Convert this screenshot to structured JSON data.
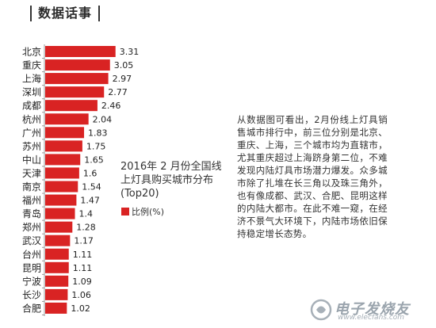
{
  "header": {
    "title": "数据话事"
  },
  "article": {
    "text": "从数据图可看出，2月份线上灯具销售城市排行中，前三位分别是北京、重庆、上海，三个城市均为直辖市，尤其重庆超过上海跻身第二位，不难发现内陆灯具市场潜力爆发。众多城市除了扎堆在长三角以及珠三角外，也有像成都、武汉、合肥、昆明这样的内陆大都市。在此不难一窥，在经济不景气大环境下，内陆市场依旧保持稳定增长态势。"
  },
  "watermark": {
    "text": "电子发烧友",
    "url": "www.elecfans.com"
  },
  "chart_data": {
    "type": "bar",
    "orientation": "horizontal",
    "title": "2016年 2 月份全国线上灯具购买城市分布(Top20)",
    "legend": "比例(%)",
    "categories": [
      "北京",
      "重庆",
      "上海",
      "深圳",
      "成都",
      "杭州",
      "广州",
      "苏州",
      "中山",
      "天津",
      "南京",
      "福州",
      "青岛",
      "郑州",
      "武汉",
      "台州",
      "昆明",
      "宁波",
      "长沙",
      "合肥"
    ],
    "values": [
      3.31,
      3.05,
      2.97,
      2.77,
      2.46,
      2.04,
      1.83,
      1.75,
      1.65,
      1.6,
      1.54,
      1.47,
      1.4,
      1.28,
      1.17,
      1.11,
      1.11,
      1.09,
      1.06,
      1.02
    ],
    "value_labels": [
      "3.31",
      "3.05",
      "2.97",
      "2.77",
      "2.46",
      "2.04",
      "1.83",
      "1.75",
      "1.65",
      "1.6",
      "1.54",
      "1.47",
      "1.4",
      "1.28",
      "1.17",
      "1.11",
      "1.11",
      "1.09",
      "1.06",
      "1.02"
    ],
    "color": "#d92323",
    "grid": false
  }
}
